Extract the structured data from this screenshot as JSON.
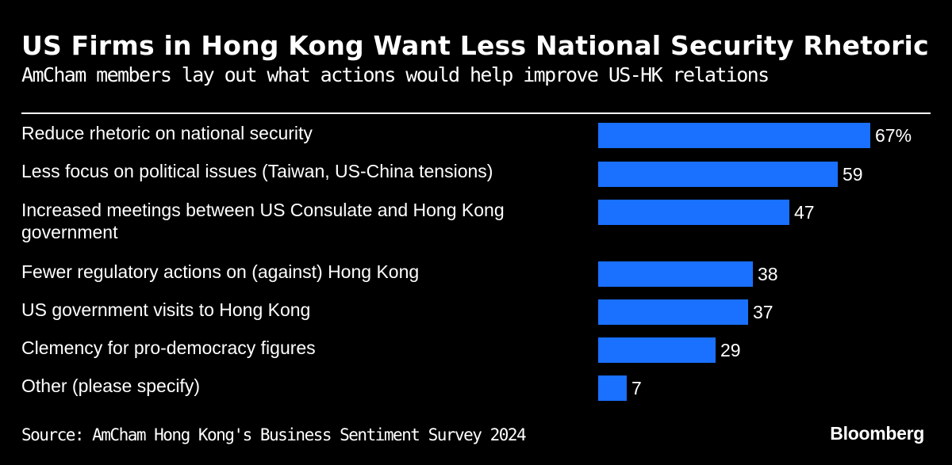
{
  "header": {
    "title": "US Firms in Hong Kong Want Less National Security Rhetoric",
    "subtitle": "AmCham members lay out what actions would help improve US-HK relations"
  },
  "footer": {
    "source": "Source: AmCham Hong Kong's Business Sentiment Survey 2024",
    "brand": "Bloomberg"
  },
  "colors": {
    "background": "#000000",
    "bar": "#1a70ff",
    "text": "#ffffff"
  },
  "chart_data": {
    "type": "bar",
    "orientation": "horizontal",
    "title": "US Firms in Hong Kong Want Less National Security Rhetoric",
    "subtitle": "AmCham members lay out what actions would help improve US-HK relations",
    "xlabel": "",
    "ylabel": "",
    "xlim": [
      0,
      67
    ],
    "grid": false,
    "categories": [
      "Reduce rhetoric on national security",
      "Less focus on political issues (Taiwan, US-China tensions)",
      "Increased meetings between US Consulate and Hong Kong government",
      "Fewer regulatory actions on (against) Hong Kong",
      "US government visits to Hong Kong",
      "Clemency for pro-democracy figures",
      "Other (please specify)"
    ],
    "values": [
      67,
      59,
      47,
      38,
      37,
      29,
      7
    ],
    "value_labels": [
      "67%",
      "59",
      "47",
      "38",
      "37",
      "29",
      "7"
    ],
    "unit": "%"
  }
}
